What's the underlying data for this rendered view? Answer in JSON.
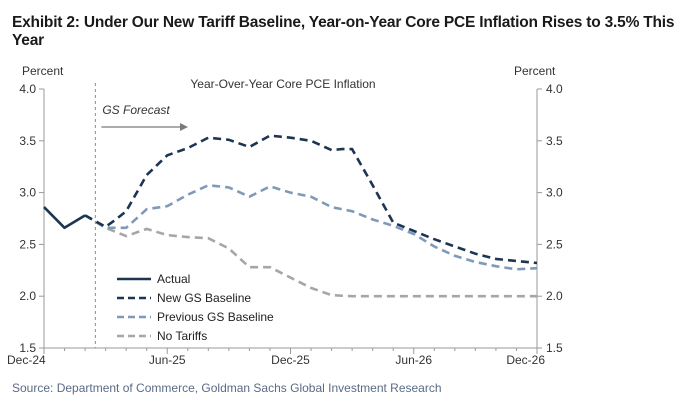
{
  "page": {
    "title": "Exhibit 2: Under Our New Tariff Baseline, Year-on-Year Core PCE Inflation Rises to 3.5% This Year",
    "source": "Source: Department of Commerce, Goldman Sachs Global Investment Research"
  },
  "chart_data": {
    "type": "line",
    "title": "Year-Over-Year  Core PCE Inflation",
    "ylabel_left": "Percent",
    "ylabel_right": "Percent",
    "ylim": [
      1.5,
      4.0
    ],
    "yticks": [
      "1.5",
      "2.0",
      "2.5",
      "3.0",
      "3.5",
      "4.0"
    ],
    "xlim": [
      0,
      24
    ],
    "xticks": [
      {
        "x": 0,
        "label": "Dec-24"
      },
      {
        "x": 6,
        "label": "Jun-25"
      },
      {
        "x": 12,
        "label": "Dec-25"
      },
      {
        "x": 18,
        "label": "Jun-26"
      },
      {
        "x": 24,
        "label": "Dec-26"
      }
    ],
    "forecast_start": 2.5,
    "forecast_label": "GS Forecast",
    "grid": false,
    "legend_position": "bottom-left",
    "series": [
      {
        "name": "Actual",
        "color": "#1c3553",
        "dash": "solid",
        "x": [
          0,
          1,
          2
        ],
        "y": [
          2.86,
          2.66,
          2.78
        ]
      },
      {
        "name": "New GS Baseline",
        "color": "#1c3553",
        "dash": "dashed",
        "x": [
          2,
          3,
          3.5,
          4,
          5,
          6,
          7,
          8,
          9,
          10,
          11,
          12,
          13,
          14,
          14.5,
          15,
          16,
          17,
          18,
          19,
          20,
          21,
          22,
          23,
          24
        ],
        "y": [
          2.78,
          2.67,
          2.74,
          2.82,
          3.17,
          3.36,
          3.43,
          3.53,
          3.51,
          3.44,
          3.55,
          3.53,
          3.5,
          3.41,
          3.42,
          3.42,
          3.07,
          2.71,
          2.63,
          2.55,
          2.48,
          2.41,
          2.36,
          2.34,
          2.32
        ]
      },
      {
        "name": "Previous GS Baseline",
        "color": "#7f9ab8",
        "dash": "dashed",
        "x": [
          2,
          3,
          4,
          5,
          6,
          7,
          8,
          9,
          10,
          11,
          12,
          13,
          14,
          15,
          16,
          17,
          18,
          19,
          20,
          21,
          22,
          23,
          24
        ],
        "y": [
          2.78,
          2.66,
          2.66,
          2.84,
          2.87,
          2.98,
          3.07,
          3.05,
          2.96,
          3.06,
          3.0,
          2.96,
          2.86,
          2.82,
          2.74,
          2.68,
          2.6,
          2.48,
          2.39,
          2.33,
          2.29,
          2.26,
          2.27
        ]
      },
      {
        "name": "No Tariffs",
        "color": "#a6a6a6",
        "dash": "dashed",
        "x": [
          2,
          3,
          4,
          5,
          6,
          7,
          8,
          9,
          10,
          11,
          12,
          13,
          14,
          15,
          16,
          17,
          18,
          19,
          20,
          21,
          22,
          23,
          24
        ],
        "y": [
          2.78,
          2.66,
          2.58,
          2.65,
          2.59,
          2.57,
          2.56,
          2.46,
          2.28,
          2.28,
          2.18,
          2.08,
          2.01,
          2.0,
          2.0,
          2.0,
          2.0,
          2.0,
          2.0,
          2.0,
          2.0,
          2.0,
          2.0
        ]
      }
    ]
  }
}
